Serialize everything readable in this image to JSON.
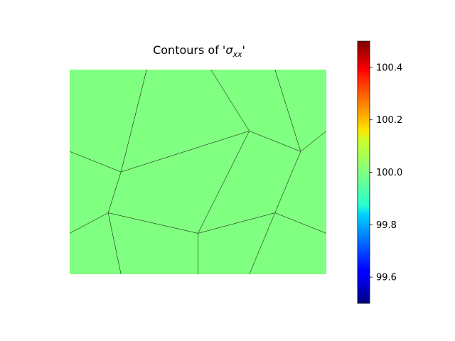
{
  "chart_data": {
    "type": "heatmap",
    "title_prefix": "Contours of '",
    "title_symbol": "σ",
    "title_subscript": "xx",
    "title_suffix": "'",
    "field_value": 100.0,
    "colorbar": {
      "colormap": "jet",
      "vmin": 99.5,
      "vmax": 100.5,
      "ticks": [
        99.6,
        99.8,
        100.0,
        100.2,
        100.4
      ],
      "tick_labels": [
        "99.6",
        "99.8",
        "100.0",
        "100.2",
        "100.4"
      ]
    },
    "fill_color": "#80ff80",
    "edge_color": "#000000",
    "axes_visible": false,
    "domain": {
      "xlim": [
        0,
        1
      ],
      "ylim": [
        0,
        0.8
      ]
    },
    "grain_edges": [
      [
        [
          0.3,
          0.8
        ],
        [
          0.2,
          0.4
        ]
      ],
      [
        [
          0.55,
          0.8
        ],
        [
          0.7,
          0.56
        ]
      ],
      [
        [
          0.8,
          0.8
        ],
        [
          0.9,
          0.48
        ]
      ],
      [
        [
          0.0,
          0.48
        ],
        [
          0.2,
          0.4
        ]
      ],
      [
        [
          0.2,
          0.4
        ],
        [
          0.7,
          0.56
        ]
      ],
      [
        [
          0.7,
          0.56
        ],
        [
          0.9,
          0.48
        ]
      ],
      [
        [
          0.9,
          0.48
        ],
        [
          1.0,
          0.56
        ]
      ],
      [
        [
          0.7,
          0.56
        ],
        [
          0.5,
          0.16
        ]
      ],
      [
        [
          0.9,
          0.48
        ],
        [
          0.8,
          0.24
        ]
      ],
      [
        [
          0.2,
          0.4
        ],
        [
          0.15,
          0.24
        ]
      ],
      [
        [
          0.0,
          0.16
        ],
        [
          0.15,
          0.24
        ]
      ],
      [
        [
          0.15,
          0.24
        ],
        [
          0.5,
          0.16
        ]
      ],
      [
        [
          0.5,
          0.16
        ],
        [
          0.8,
          0.24
        ]
      ],
      [
        [
          0.8,
          0.24
        ],
        [
          1.0,
          0.16
        ]
      ],
      [
        [
          0.15,
          0.24
        ],
        [
          0.2,
          0.0
        ]
      ],
      [
        [
          0.5,
          0.16
        ],
        [
          0.5,
          0.0
        ]
      ],
      [
        [
          0.8,
          0.24
        ],
        [
          0.7,
          0.0
        ]
      ]
    ]
  }
}
